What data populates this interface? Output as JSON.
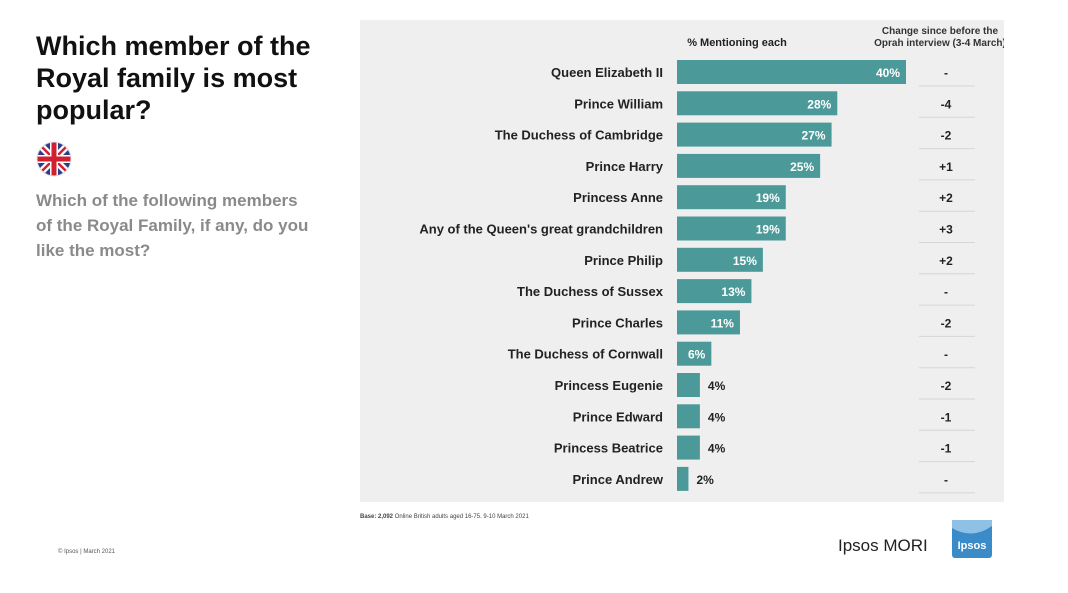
{
  "slide": {
    "title": "Which member of the Royal family is most popular?",
    "question": "Which of the following members of the Royal Family, if any, do you like the most?",
    "base_label": "Base: 2,092",
    "base_text": "Online British adults aged 16-75.  9-10 March 2021",
    "footer": "© Ipsos | March 2021",
    "brand": "Ipsos MORI",
    "logo_text": "Ipsos",
    "colors": {
      "bar": "#4b9a99",
      "panel": "#efefef",
      "logo": "#3b8bc9",
      "flag_blue": "#2b3d8c",
      "flag_red": "#cf2132"
    }
  },
  "chart_data": {
    "type": "bar",
    "orientation": "horizontal",
    "value_header": "% Mentioning each",
    "change_header": [
      "Change since before the",
      "Oprah interview (3-4 March)"
    ],
    "categories": [
      "Queen Elizabeth II",
      "Prince William",
      "The Duchess of Cambridge",
      "Prince Harry",
      "Princess Anne",
      "Any of the Queen's great grandchildren",
      "Prince Philip",
      "The Duchess of Sussex",
      "Prince Charles",
      "The Duchess of Cornwall",
      "Princess Eugenie",
      "Prince Edward",
      "Princess Beatrice",
      "Prince Andrew"
    ],
    "values": [
      40,
      28,
      27,
      25,
      19,
      19,
      15,
      13,
      11,
      6,
      4,
      4,
      4,
      2
    ],
    "value_labels": [
      "40%",
      "28%",
      "27%",
      "25%",
      "19%",
      "19%",
      "15%",
      "13%",
      "11%",
      "6%",
      "4%",
      "4%",
      "4%",
      "2%"
    ],
    "change": [
      "-",
      "-4",
      "-2",
      "+1",
      "+2",
      "+3",
      "+2",
      "-",
      "-2",
      "-",
      "-2",
      "-1",
      "-1",
      "-"
    ],
    "xlim": [
      0,
      40
    ],
    "grid": false
  }
}
